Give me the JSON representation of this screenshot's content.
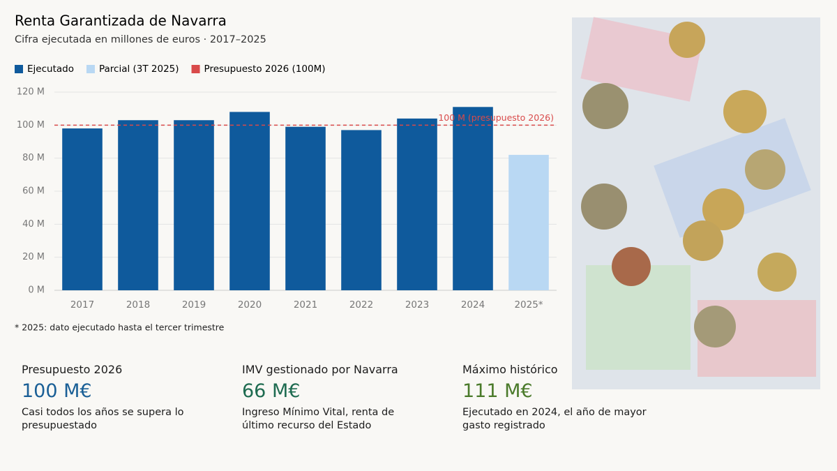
{
  "chart_data": {
    "type": "bar",
    "title": "Renta Garantizada de Navarra",
    "subtitle": "Cifra ejecutada en millones de euros · 2017–2025",
    "categories": [
      "2017",
      "2018",
      "2019",
      "2020",
      "2021",
      "2022",
      "2023",
      "2024",
      "2025*"
    ],
    "series": [
      {
        "name": "Ejecutado",
        "color": "#0f5a9c",
        "values": [
          98,
          103,
          103,
          108,
          99,
          97,
          104,
          111,
          null
        ]
      },
      {
        "name": "Parcial (3T 2025)",
        "color": "#b9d8f3",
        "values": [
          null,
          null,
          null,
          null,
          null,
          null,
          null,
          null,
          82
        ]
      }
    ],
    "reference_line": {
      "name": "Presupuesto 2026 (100M)",
      "value": 100,
      "color": "#d94a4a",
      "label": "100 M (presupuesto 2026)"
    },
    "ylim": [
      0,
      120
    ],
    "yticks": [
      {
        "value": 0,
        "label": "0 M"
      },
      {
        "value": 20,
        "label": "20 M"
      },
      {
        "value": 40,
        "label": "40 M"
      },
      {
        "value": 60,
        "label": "60 M"
      },
      {
        "value": 80,
        "label": "80 M"
      },
      {
        "value": 100,
        "label": "100 M"
      },
      {
        "value": 120,
        "label": "120 M"
      }
    ],
    "grid": true,
    "note": "* 2025: dato ejecutado hasta el tercer trimestre"
  },
  "kpis": [
    {
      "label": "Presupuesto 2026",
      "value": "100 M€",
      "description": "Casi todos los años se supera lo presupuestado"
    },
    {
      "label": "IMV gestionado por Navarra",
      "value": "66 M€",
      "description": "Ingreso Mínimo Vital, renta de último recurso del Estado"
    },
    {
      "label": "Máximo histórico",
      "value": "111 M€",
      "description": "Ejecutado en 2024, el año de mayor gasto registrado"
    }
  ]
}
